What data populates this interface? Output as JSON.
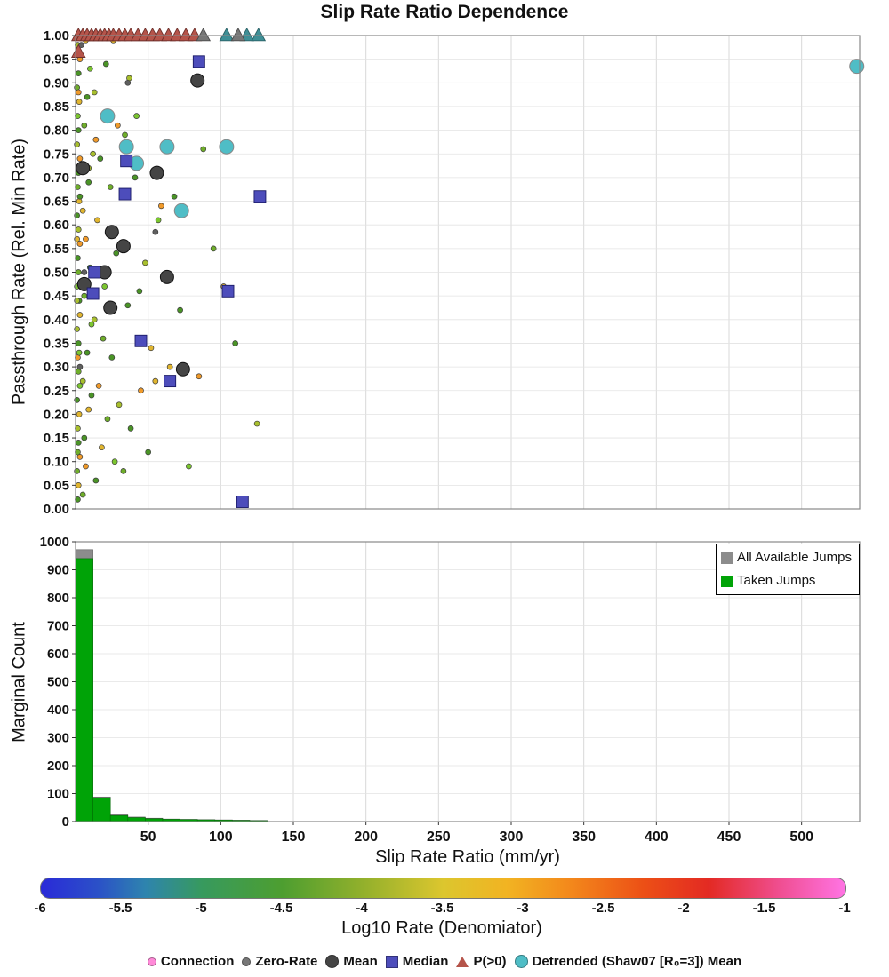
{
  "title": "Slip Rate Ratio Dependence",
  "colors": {
    "mean": "#454545",
    "mean_stroke": "#111111",
    "median": "#4d4dbb",
    "median_stroke": "#1a1a66",
    "p0": "#b5544a",
    "p0_stroke": "#6e2f2a",
    "p0_teal": "#3e8f96",
    "p0_gray": "#777777",
    "detrended": "#4fbdc6",
    "detrended_stroke": "#888888",
    "hist_all": "#8c8c8c",
    "hist_all_stroke": "#5e5e5e",
    "hist_taken": "#00a307",
    "hist_taken_stroke": "#006e04",
    "grid": "#d9d9d9",
    "grid_light": "#e3e3e3",
    "axis": "#888888",
    "tick_text": "#111111",
    "small_stroke": "#3c3c3c"
  },
  "chart_data": {
    "scatter": {
      "type": "scatter",
      "ylabel": "Passthrough Rate (Rel. Min Rate)",
      "ylim": [
        0,
        1
      ],
      "yticks": [
        0,
        0.05,
        0.1,
        0.15,
        0.2,
        0.25,
        0.3,
        0.35,
        0.4,
        0.45,
        0.5,
        0.55,
        0.6,
        0.65,
        0.7,
        0.75,
        0.8,
        0.85,
        0.9,
        0.95,
        1
      ],
      "small_palette": [
        "#4a9426",
        "#6fae2a",
        "#a8bf2d",
        "#e0b52f",
        "#f09a2a",
        "#7bc62f",
        "#5f5f5f"
      ],
      "small_points": [
        [
          1.5,
          0.02,
          0
        ],
        [
          2,
          0.05,
          3
        ],
        [
          1,
          0.08,
          1
        ],
        [
          3,
          0.11,
          4
        ],
        [
          2,
          0.14,
          0
        ],
        [
          1.5,
          0.17,
          2
        ],
        [
          2.5,
          0.2,
          3
        ],
        [
          1,
          0.23,
          0
        ],
        [
          3,
          0.26,
          5
        ],
        [
          2,
          0.29,
          1
        ],
        [
          1.5,
          0.32,
          4
        ],
        [
          2,
          0.35,
          0
        ],
        [
          1,
          0.38,
          2
        ],
        [
          3,
          0.41,
          3
        ],
        [
          2.5,
          0.44,
          0
        ],
        [
          1,
          0.47,
          5
        ],
        [
          2,
          0.5,
          1
        ],
        [
          1.5,
          0.53,
          0
        ],
        [
          3,
          0.56,
          4
        ],
        [
          2,
          0.59,
          2
        ],
        [
          1,
          0.62,
          0
        ],
        [
          2.5,
          0.65,
          3
        ],
        [
          1.5,
          0.68,
          1
        ],
        [
          2,
          0.71,
          0
        ],
        [
          3,
          0.74,
          4
        ],
        [
          1,
          0.77,
          2
        ],
        [
          2,
          0.8,
          0
        ],
        [
          1.5,
          0.83,
          5
        ],
        [
          2.5,
          0.86,
          3
        ],
        [
          1,
          0.89,
          1
        ],
        [
          2,
          0.92,
          0
        ],
        [
          3,
          0.95,
          4
        ],
        [
          1.5,
          0.98,
          2
        ],
        [
          2,
          0.995,
          0
        ],
        [
          1,
          0.57,
          3
        ],
        [
          2.5,
          0.33,
          5
        ],
        [
          1.5,
          0.12,
          1
        ],
        [
          3,
          0.66,
          0
        ],
        [
          2,
          0.88,
          4
        ],
        [
          1,
          0.44,
          2
        ],
        [
          5,
          0.03,
          1
        ],
        [
          7,
          0.09,
          4
        ],
        [
          6,
          0.15,
          0
        ],
        [
          9,
          0.21,
          3
        ],
        [
          5,
          0.27,
          2
        ],
        [
          8,
          0.33,
          0
        ],
        [
          11,
          0.39,
          5
        ],
        [
          6,
          0.45,
          1
        ],
        [
          10,
          0.51,
          0
        ],
        [
          7,
          0.57,
          4
        ],
        [
          5,
          0.63,
          3
        ],
        [
          9,
          0.69,
          0
        ],
        [
          12,
          0.75,
          2
        ],
        [
          6,
          0.81,
          1
        ],
        [
          8,
          0.87,
          0
        ],
        [
          10,
          0.93,
          5
        ],
        [
          7,
          0.99,
          3
        ],
        [
          11,
          0.24,
          0
        ],
        [
          5,
          0.48,
          4
        ],
        [
          9,
          0.72,
          2
        ],
        [
          14,
          0.06,
          0
        ],
        [
          18,
          0.13,
          3
        ],
        [
          22,
          0.19,
          1
        ],
        [
          16,
          0.26,
          4
        ],
        [
          25,
          0.32,
          0
        ],
        [
          13,
          0.4,
          2
        ],
        [
          20,
          0.47,
          5
        ],
        [
          28,
          0.54,
          0
        ],
        [
          15,
          0.61,
          3
        ],
        [
          24,
          0.68,
          1
        ],
        [
          17,
          0.74,
          0
        ],
        [
          29,
          0.81,
          4
        ],
        [
          13,
          0.88,
          2
        ],
        [
          21,
          0.94,
          0
        ],
        [
          26,
          0.99,
          3
        ],
        [
          19,
          0.36,
          1
        ],
        [
          23,
          0.58,
          0
        ],
        [
          27,
          0.1,
          5
        ],
        [
          14,
          0.78,
          4
        ],
        [
          30,
          0.22,
          2
        ],
        [
          33,
          0.08,
          1
        ],
        [
          38,
          0.17,
          0
        ],
        [
          45,
          0.25,
          4
        ],
        [
          52,
          0.34,
          3
        ],
        [
          36,
          0.43,
          0
        ],
        [
          48,
          0.52,
          2
        ],
        [
          57,
          0.61,
          5
        ],
        [
          41,
          0.7,
          0
        ],
        [
          34,
          0.79,
          1
        ],
        [
          55,
          0.27,
          3
        ],
        [
          44,
          0.46,
          0
        ],
        [
          59,
          0.64,
          4
        ],
        [
          37,
          0.91,
          2
        ],
        [
          50,
          0.12,
          0
        ],
        [
          42,
          0.83,
          5
        ],
        [
          65,
          0.3,
          3
        ],
        [
          72,
          0.42,
          0
        ],
        [
          85,
          0.28,
          4
        ],
        [
          95,
          0.55,
          1
        ],
        [
          110,
          0.35,
          0
        ],
        [
          125,
          0.18,
          2
        ],
        [
          78,
          0.09,
          5
        ],
        [
          68,
          0.66,
          0
        ],
        [
          102,
          0.47,
          3
        ],
        [
          88,
          0.76,
          1
        ],
        [
          4,
          0.98,
          6
        ],
        [
          6,
          0.5,
          6
        ],
        [
          3,
          0.3,
          6
        ],
        [
          36,
          0.9,
          6
        ],
        [
          55,
          0.585,
          6
        ]
      ],
      "mean_points": [
        [
          84,
          0.905
        ],
        [
          5,
          0.72
        ],
        [
          56,
          0.71
        ],
        [
          25,
          0.585
        ],
        [
          33,
          0.555
        ],
        [
          20,
          0.5
        ],
        [
          63,
          0.49
        ],
        [
          6,
          0.475
        ],
        [
          24,
          0.425
        ],
        [
          74,
          0.295
        ]
      ],
      "median_points": [
        [
          85,
          0.945
        ],
        [
          35,
          0.735
        ],
        [
          34,
          0.665
        ],
        [
          127,
          0.66
        ],
        [
          13,
          0.5
        ],
        [
          12,
          0.455
        ],
        [
          105,
          0.46
        ],
        [
          45,
          0.355
        ],
        [
          65,
          0.27
        ],
        [
          115,
          0.015
        ]
      ],
      "p0_points": [
        [
          2,
          1
        ],
        [
          5,
          1
        ],
        [
          8,
          1
        ],
        [
          11,
          1
        ],
        [
          14,
          1
        ],
        [
          17,
          1
        ],
        [
          20,
          1
        ],
        [
          23,
          1
        ],
        [
          26,
          1
        ],
        [
          30,
          1
        ],
        [
          34,
          1
        ],
        [
          38,
          1
        ],
        [
          43,
          1
        ],
        [
          48,
          1
        ],
        [
          53,
          1
        ],
        [
          58,
          1
        ],
        [
          64,
          1
        ],
        [
          70,
          1
        ],
        [
          76,
          1
        ],
        [
          82,
          1
        ],
        [
          2,
          0.965
        ]
      ],
      "top_teal_triangles": [
        [
          104,
          1
        ],
        [
          118,
          1
        ],
        [
          126,
          1
        ]
      ],
      "top_gray_triangles": [
        [
          88,
          1
        ],
        [
          112,
          1
        ]
      ],
      "detrended_points": [
        [
          22,
          0.83
        ],
        [
          35,
          0.765
        ],
        [
          63,
          0.765
        ],
        [
          104,
          0.765
        ],
        [
          42,
          0.73
        ],
        [
          73,
          0.63
        ],
        [
          538,
          0.935
        ]
      ]
    },
    "histogram": {
      "type": "bar",
      "ylabel": "Marginal Count",
      "ylim": [
        0,
        1000
      ],
      "yticks": [
        0,
        100,
        200,
        300,
        400,
        500,
        600,
        700,
        800,
        900,
        1000
      ],
      "bin_start": 0,
      "bin_width": 12,
      "all_values": [
        972,
        88,
        24,
        16,
        12,
        9,
        8,
        7,
        6,
        5,
        4
      ],
      "taken_values": [
        940,
        85,
        21,
        14,
        10,
        8,
        7,
        6,
        5,
        4,
        3
      ],
      "legend": {
        "all": {
          "label": "All Available Jumps",
          "color": "#8c8c8c"
        },
        "taken": {
          "label": "Taken Jumps",
          "color": "#00a307"
        }
      }
    },
    "xaxis": {
      "label": "Slip Rate Ratio (mm/yr)",
      "xlim": [
        0,
        540
      ],
      "ticks": [
        50,
        100,
        150,
        200,
        250,
        300,
        350,
        400,
        450,
        500
      ]
    },
    "colorbar": {
      "label": "Log10 Rate (Denomiator)",
      "ticks": [
        -6,
        -5.5,
        -5,
        -4.5,
        -4,
        -3.5,
        -3,
        -2.5,
        -2,
        -1.5,
        -1
      ],
      "stops": [
        {
          "pos": 0,
          "color": "#2a2ad8"
        },
        {
          "pos": 0.07,
          "color": "#2b50c8"
        },
        {
          "pos": 0.13,
          "color": "#2e84ae"
        },
        {
          "pos": 0.2,
          "color": "#379a5e"
        },
        {
          "pos": 0.3,
          "color": "#4d9e30"
        },
        {
          "pos": 0.4,
          "color": "#92b02c"
        },
        {
          "pos": 0.5,
          "color": "#dcc62e"
        },
        {
          "pos": 0.58,
          "color": "#f2b322"
        },
        {
          "pos": 0.66,
          "color": "#f3871b"
        },
        {
          "pos": 0.75,
          "color": "#ec4f16"
        },
        {
          "pos": 0.83,
          "color": "#e32a23"
        },
        {
          "pos": 0.92,
          "color": "#f04f93"
        },
        {
          "pos": 1,
          "color": "#ff74e4"
        }
      ]
    }
  },
  "bottom_legend": [
    {
      "label": "Connection",
      "marker": "dot",
      "color": "#ff8ad8",
      "size": 8
    },
    {
      "label": "Zero-Rate",
      "marker": "dot",
      "color": "#777777",
      "size": 8
    },
    {
      "label": "Mean",
      "marker": "circle",
      "color": "#454545",
      "size": 13
    },
    {
      "label": "Median",
      "marker": "square",
      "color": "#4d4dbb",
      "size": 12
    },
    {
      "label": "P(>0)",
      "marker": "triangle",
      "color": "#b5544a",
      "size": 13
    },
    {
      "label": "Detrended (Shaw07 [R₀=3]) Mean",
      "marker": "circle",
      "color": "#4fbdc6",
      "size": 13
    }
  ]
}
